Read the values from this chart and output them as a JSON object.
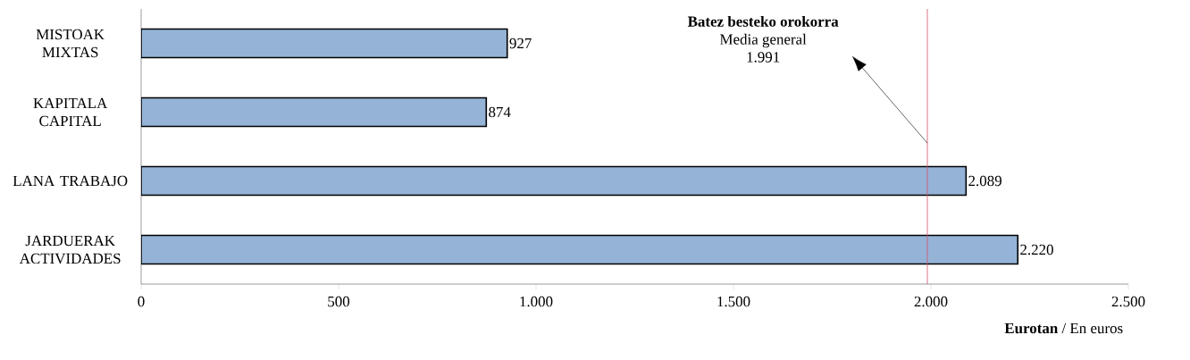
{
  "chart_data": {
    "type": "bar",
    "orientation": "horizontal",
    "categories": [
      "MISTOAK MIXTAS",
      "KAPITALA CAPITAL",
      "LANA TRABAJO",
      "JARDUERAK ACTIVIDADES"
    ],
    "values": [
      927,
      874,
      2089,
      2220
    ],
    "value_labels": [
      "927",
      "874",
      "2.089",
      "2.220"
    ],
    "color": "#95b3d7",
    "xlim": [
      0,
      2500
    ],
    "xticks": [
      0,
      500,
      {
        "value": 1000,
        "label": "1.000"
      },
      {
        "value": 1500,
        "label": "1.500"
      },
      {
        "value": 2000,
        "label": "2.000"
      },
      {
        "value": 2500,
        "label": "2.500"
      }
    ],
    "xlabel": "**Eurotan** / En euros",
    "ref_lines": [
      {
        "axis": "x",
        "value": 1991,
        "color": "#d0506a"
      }
    ],
    "annotations": [
      "Batez besteko orokorra",
      "Media general",
      "1.991"
    ]
  }
}
